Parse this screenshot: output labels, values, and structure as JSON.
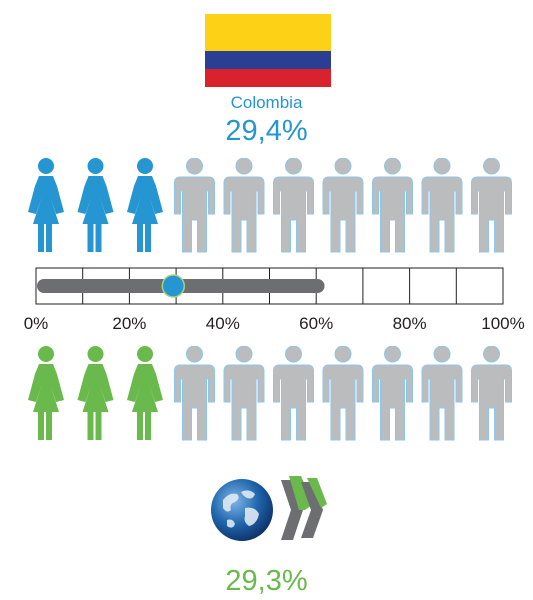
{
  "country": {
    "name": "Colombia",
    "value_label": "29,4%"
  },
  "oecd": {
    "name": "OECD",
    "value_label": "29,3%"
  },
  "chart_data": {
    "type": "bar",
    "categories": [
      "Colombia",
      "OECD"
    ],
    "values": [
      29.4,
      29.3
    ],
    "pictogram_filled_of_ten": [
      3,
      3
    ],
    "range_bar": {
      "start": 0,
      "end": 62,
      "marker": 29.4
    },
    "xlim": [
      0,
      100
    ],
    "x_ticks": [
      "0%",
      "20%",
      "40%",
      "60%",
      "80%",
      "100%"
    ],
    "colors": {
      "country": "#2596d1",
      "oecd": "#6ab94d",
      "unfilled": "#bbbcbe",
      "range_bar": "#6d6e71"
    }
  },
  "flag": {
    "name": "colombia-flag",
    "colors": [
      "#fcd116",
      "#2a3f94",
      "#d8232e"
    ]
  },
  "logo": {
    "name": "oecd-globe-logo"
  }
}
